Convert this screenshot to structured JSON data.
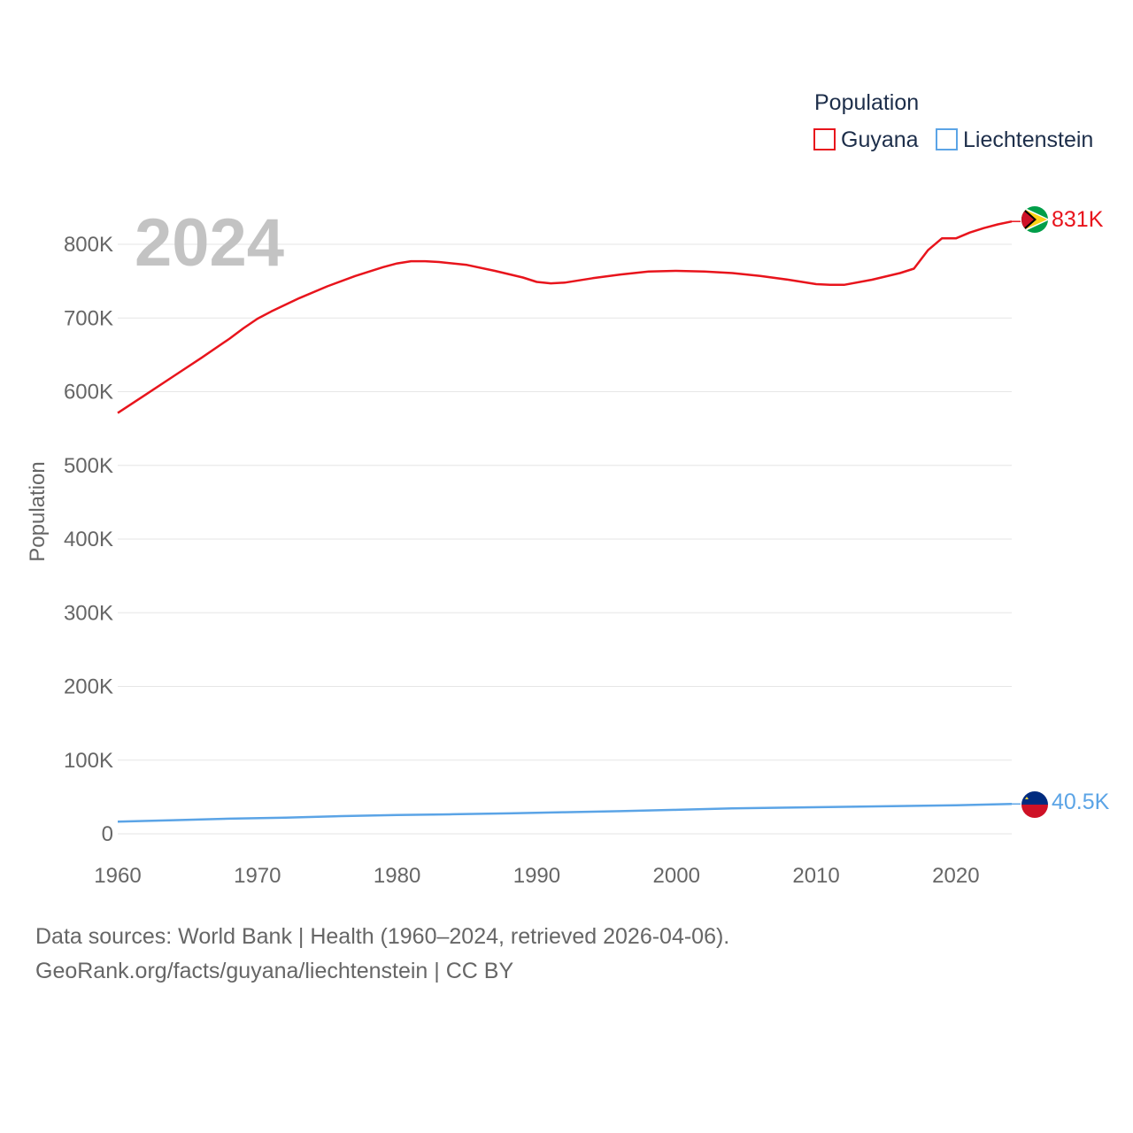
{
  "chart_data": {
    "type": "line",
    "ylabel": "Population",
    "year_label": "2024",
    "legend": {
      "title": "Population",
      "position": "top-right"
    },
    "x_ticks": [
      "1960",
      "1970",
      "1980",
      "1990",
      "2000",
      "2010",
      "2020"
    ],
    "y_ticks": [
      {
        "value": 0,
        "label": "0"
      },
      {
        "value": 100000,
        "label": "100K"
      },
      {
        "value": 200000,
        "label": "200K"
      },
      {
        "value": 300000,
        "label": "300K"
      },
      {
        "value": 400000,
        "label": "400K"
      },
      {
        "value": 500000,
        "label": "500K"
      },
      {
        "value": 600000,
        "label": "600K"
      },
      {
        "value": 700000,
        "label": "700K"
      },
      {
        "value": 800000,
        "label": "800K"
      }
    ],
    "xlim": [
      1960,
      2024
    ],
    "ylim": [
      0,
      800000
    ],
    "grid": true,
    "series": [
      {
        "name": "Guyana",
        "color": "#e8141c",
        "flag_icon": "guyana-flag-icon",
        "end_label": "831K",
        "x": [
          1960,
          1962,
          1964,
          1966,
          1968,
          1969,
          1970,
          1971,
          1973,
          1975,
          1977,
          1979,
          1980,
          1981,
          1982,
          1983,
          1985,
          1987,
          1989,
          1990,
          1991,
          1992,
          1994,
          1996,
          1998,
          2000,
          2002,
          2004,
          2006,
          2008,
          2010,
          2011,
          2012,
          2014,
          2016,
          2017,
          2018,
          2019,
          2020,
          2021,
          2022,
          2023,
          2024
        ],
        "values": [
          571000,
          596000,
          621000,
          646000,
          672000,
          686000,
          699000,
          709000,
          727000,
          743000,
          757000,
          769000,
          774000,
          777000,
          777000,
          776000,
          772000,
          764000,
          755000,
          749000,
          747000,
          748000,
          754000,
          759000,
          763000,
          764000,
          763000,
          761000,
          757000,
          752000,
          746000,
          745000,
          745000,
          752000,
          761000,
          767000,
          792000,
          808000,
          808000,
          816000,
          822000,
          827000,
          831000
        ]
      },
      {
        "name": "Liechtenstein",
        "color": "#5ba4e6",
        "flag_icon": "liechtenstein-flag-icon",
        "end_label": "40.5K",
        "x": [
          1960,
          1964,
          1968,
          1972,
          1976,
          1980,
          1984,
          1988,
          1992,
          1996,
          2000,
          2004,
          2008,
          2012,
          2016,
          2020,
          2024
        ],
        "values": [
          16500,
          18500,
          20500,
          22000,
          24000,
          25500,
          26500,
          27800,
          29300,
          30800,
          32600,
          34500,
          35600,
          36600,
          37700,
          38800,
          40500
        ]
      }
    ]
  },
  "footer": {
    "line1": "Data sources: World Bank | Health (1960–2024, retrieved 2026-04-06).",
    "line2": "GeoRank.org/facts/guyana/liechtenstein | CC BY"
  }
}
